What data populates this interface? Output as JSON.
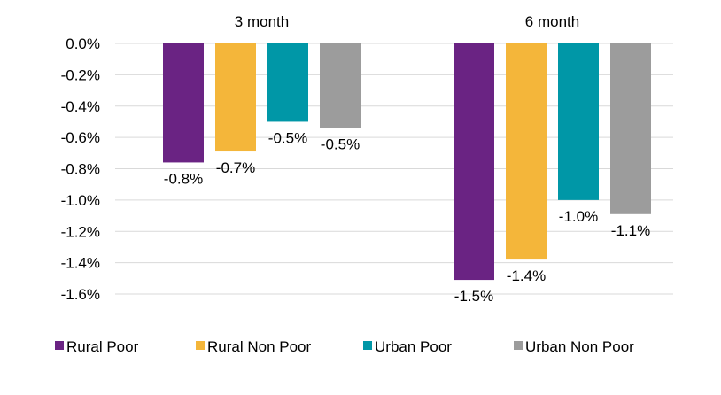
{
  "chart_data": {
    "type": "bar",
    "title": "",
    "xlabel": "",
    "ylabel": "",
    "ylim": [
      -1.6,
      0.0
    ],
    "yticks": [
      0.0,
      -0.2,
      -0.4,
      -0.6,
      -0.8,
      -1.0,
      -1.2,
      -1.4,
      -1.6
    ],
    "ytick_labels": [
      "0.0%",
      "-0.2%",
      "-0.4%",
      "-0.6%",
      "-0.8%",
      "-1.0%",
      "-1.2%",
      "-1.4%",
      "-1.6%"
    ],
    "grid": true,
    "legend_position": "bottom",
    "categories": [
      "3 month",
      "6 month"
    ],
    "series": [
      {
        "name": "Rural Poor",
        "color": "#6a2383",
        "values": [
          -0.76,
          -1.51
        ],
        "labels": [
          "-0.8%",
          "-1.5%"
        ]
      },
      {
        "name": "Rural Non Poor",
        "color": "#f4b63a",
        "values": [
          -0.69,
          -1.38
        ],
        "labels": [
          "-0.7%",
          "-1.4%"
        ]
      },
      {
        "name": "Urban Poor",
        "color": "#0097a7",
        "values": [
          -0.5,
          -1.0
        ],
        "labels": [
          "-0.5%",
          "-1.0%"
        ]
      },
      {
        "name": "Urban Non Poor",
        "color": "#9c9c9c",
        "values": [
          -0.54,
          -1.09
        ],
        "labels": [
          "-0.5%",
          "-1.1%"
        ]
      }
    ]
  }
}
